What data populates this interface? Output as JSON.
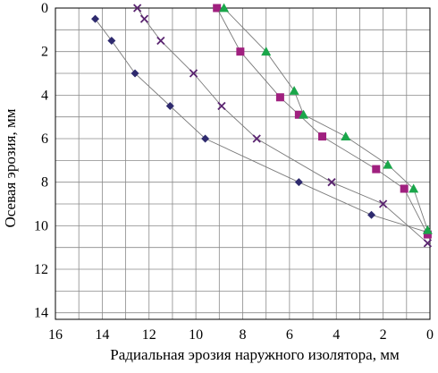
{
  "chart_data": {
    "type": "scatter",
    "title": "",
    "xlabel": "Радиальная эрозия наружного изолятора, мм",
    "ylabel": "Осевая эрозия, мм",
    "xlim": [
      16,
      0
    ],
    "ylim": [
      0,
      14.3
    ],
    "x_reversed": true,
    "y_inverted": true,
    "x_ticks": [
      "16",
      "14",
      "12",
      "10",
      "8",
      "6",
      "4",
      "2",
      "0"
    ],
    "x_tick_values": [
      16,
      14,
      12,
      10,
      8,
      6,
      4,
      2,
      0
    ],
    "y_ticks": [
      "0",
      "2",
      "4",
      "6",
      "8",
      "10",
      "12",
      "14"
    ],
    "y_tick_values": [
      0,
      2,
      4,
      6,
      8,
      10,
      12,
      14
    ],
    "grid": true,
    "legend": "none",
    "series": [
      {
        "marker": "diamond",
        "color": "#2e2a6e",
        "points": [
          [
            14.3,
            0.5
          ],
          [
            13.6,
            1.5
          ],
          [
            12.6,
            3.0
          ],
          [
            11.1,
            4.5
          ],
          [
            9.6,
            6.0
          ],
          [
            5.6,
            8.0
          ],
          [
            2.5,
            9.5
          ],
          [
            0.1,
            10.3
          ]
        ]
      },
      {
        "marker": "cross",
        "color": "#5a2470",
        "points": [
          [
            12.5,
            0.0
          ],
          [
            12.2,
            0.5
          ],
          [
            11.5,
            1.5
          ],
          [
            10.1,
            3.0
          ],
          [
            8.9,
            4.5
          ],
          [
            7.4,
            6.0
          ],
          [
            4.2,
            8.0
          ],
          [
            2.0,
            9.0
          ],
          [
            0.1,
            10.8
          ]
        ]
      },
      {
        "marker": "square",
        "color": "#a0207f",
        "points": [
          [
            9.1,
            0.0
          ],
          [
            8.1,
            2.0
          ],
          [
            6.4,
            4.1
          ],
          [
            5.6,
            4.9
          ],
          [
            4.6,
            5.9
          ],
          [
            2.3,
            7.4
          ],
          [
            1.1,
            8.3
          ],
          [
            0.1,
            10.4
          ]
        ]
      },
      {
        "marker": "triangle",
        "color": "#1aa64a",
        "points": [
          [
            8.8,
            0.0
          ],
          [
            7.0,
            2.0
          ],
          [
            5.8,
            3.8
          ],
          [
            5.4,
            4.9
          ],
          [
            3.6,
            5.9
          ],
          [
            1.8,
            7.2
          ],
          [
            0.7,
            8.3
          ],
          [
            0.1,
            10.2
          ]
        ]
      }
    ]
  }
}
